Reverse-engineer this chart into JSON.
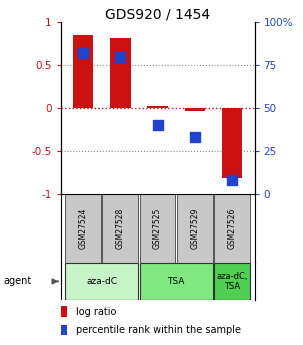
{
  "title": "GDS920 / 1454",
  "samples": [
    "GSM27524",
    "GSM27528",
    "GSM27525",
    "GSM27529",
    "GSM27526"
  ],
  "log_ratios": [
    0.85,
    0.82,
    0.02,
    -0.04,
    -0.82
  ],
  "percentile_ranks": [
    82,
    80,
    40,
    33,
    8
  ],
  "ylim_left": [
    -1,
    1
  ],
  "ylim_right": [
    0,
    100
  ],
  "yticks_left": [
    -1,
    -0.5,
    0,
    0.5,
    1
  ],
  "yticks_right": [
    0,
    25,
    50,
    75,
    100
  ],
  "ytick_labels_left": [
    "-1",
    "-0.5",
    "0",
    "0.5",
    "1"
  ],
  "ytick_labels_right": [
    "0",
    "25",
    "50",
    "75",
    "100%"
  ],
  "agents": [
    {
      "label": "aza-dC",
      "span": [
        0,
        2
      ],
      "color": "#c8f5c8"
    },
    {
      "label": "TSA",
      "span": [
        2,
        4
      ],
      "color": "#80e880"
    },
    {
      "label": "aza-dC,\nTSA",
      "span": [
        4,
        5
      ],
      "color": "#50d050"
    }
  ],
  "bar_color": "#cc1111",
  "dot_color": "#2244cc",
  "bar_width": 0.55,
  "dot_size": 50,
  "agent_label": "agent",
  "legend_items": [
    {
      "color": "#cc1111",
      "label": " log ratio"
    },
    {
      "color": "#2244cc",
      "label": " percentile rank within the sample"
    }
  ],
  "sample_box_color": "#c8c8c8",
  "hline_color": "#cc1111",
  "grid_color": "#888888"
}
